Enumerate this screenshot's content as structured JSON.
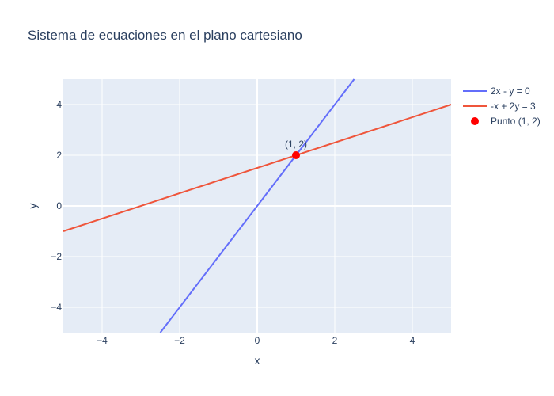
{
  "chart_data": {
    "type": "line",
    "title": "Sistema de ecuaciones en el plano cartesiano",
    "xlabel": "x",
    "ylabel": "y",
    "xlim": [
      -5,
      5
    ],
    "ylim": [
      -5,
      5
    ],
    "xticks": [
      -4,
      -2,
      0,
      2,
      4
    ],
    "yticks": [
      -4,
      -2,
      0,
      2,
      4
    ],
    "grid": true,
    "legend_position": "right",
    "series": [
      {
        "name": "2x - y = 0",
        "kind": "line",
        "color": "#636efa",
        "x": [
          -2.5,
          2.5
        ],
        "y": [
          -5,
          5
        ]
      },
      {
        "name": "-x + 2y = 3",
        "kind": "line",
        "color": "#ef553b",
        "x": [
          -5,
          5
        ],
        "y": [
          -1,
          4
        ]
      },
      {
        "name": "Punto (1, 2)",
        "kind": "marker",
        "color": "#ff0000",
        "x": [
          1
        ],
        "y": [
          2
        ],
        "label": "(1, 2)"
      }
    ]
  }
}
